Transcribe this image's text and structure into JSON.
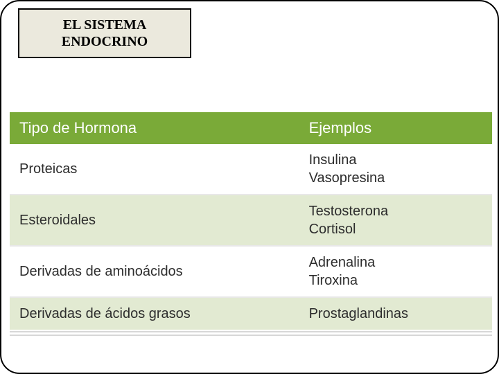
{
  "title": "EL SISTEMA\nENDOCRINO",
  "colors": {
    "slide_border": "#000000",
    "title_bg": "#ebe9dd",
    "header_bg": "#7aaa38",
    "header_text": "#ffffff",
    "row_odd_bg": "#ffffff",
    "row_even_bg": "#e2ead2",
    "cell_text": "#2d2d2d",
    "row_rule": "#e8e8e8",
    "footer_rule": "#d7d7d7"
  },
  "table": {
    "columns": [
      "Tipo de Hormona",
      "Ejemplos"
    ],
    "col_widths_pct": [
      60,
      40
    ],
    "header_fontsize": 22,
    "cell_fontsize": 20,
    "rows": [
      {
        "type": "Proteicas",
        "examples": "Insulina\nVasopresina"
      },
      {
        "type": "Esteroidales",
        "examples": "Testosterona\nCortisol"
      },
      {
        "type": "Derivadas de aminoácidos",
        "examples": "Adrenalina\nTiroxina"
      },
      {
        "type": "Derivadas de ácidos grasos",
        "examples": "Prostaglandinas"
      }
    ]
  }
}
